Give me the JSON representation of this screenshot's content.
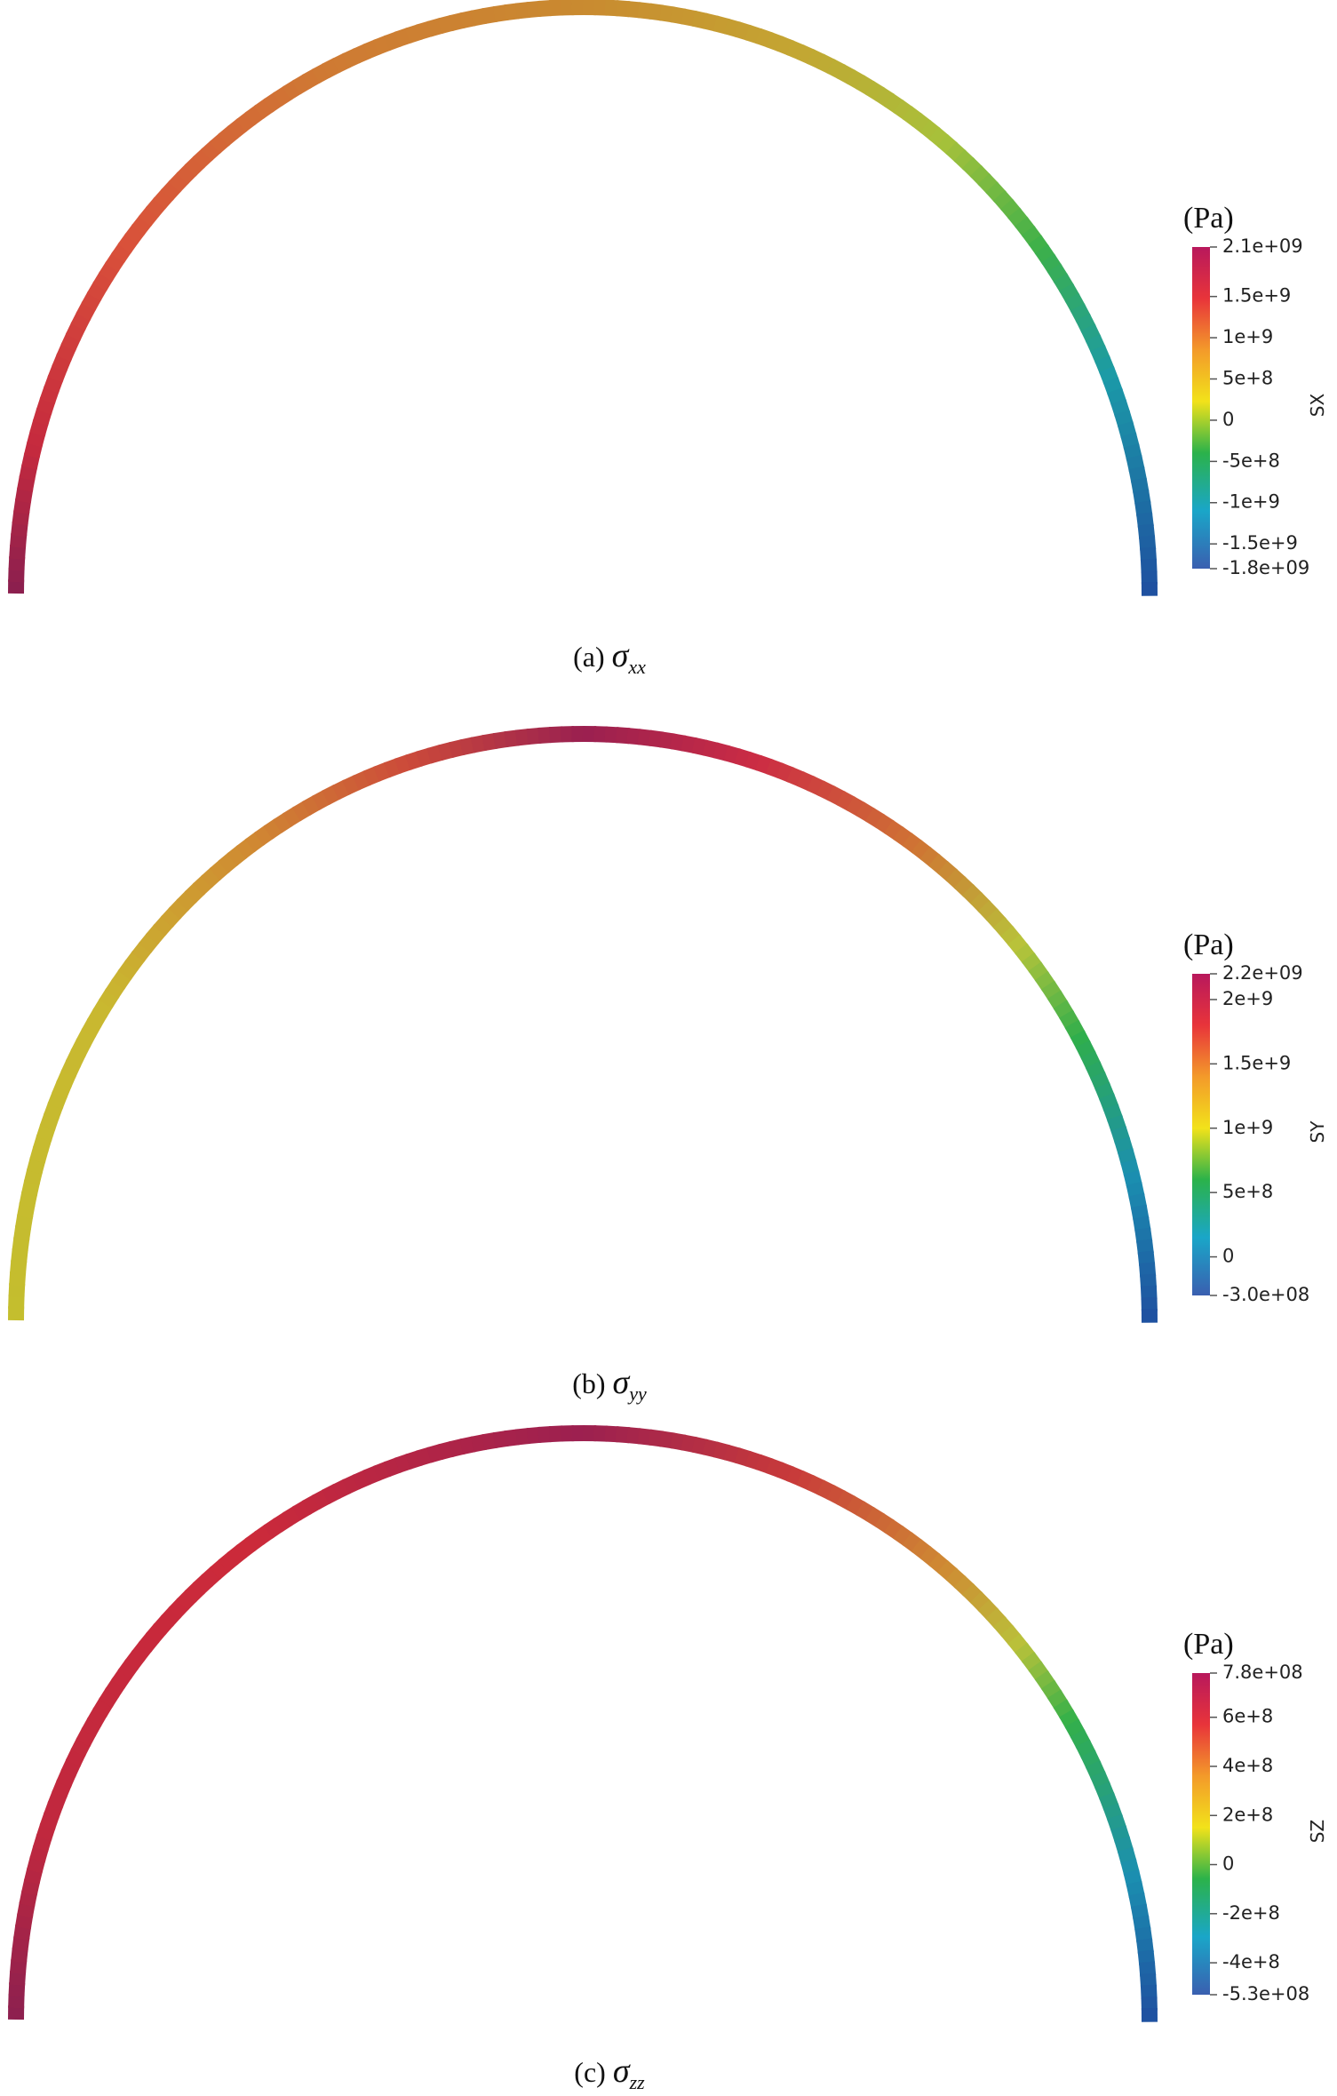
{
  "panels": [
    {
      "unit": "(Pa)",
      "scalar": "SX",
      "caption_prefix": "(a)",
      "caption_symbol": "σ",
      "caption_subscript": "xx",
      "colorbar": {
        "range": [
          -1800000000,
          2100000000
        ],
        "ticks": [
          {
            "value": 2100000000,
            "label": "2.1e+09"
          },
          {
            "value": 1500000000,
            "label": "1.5e+9"
          },
          {
            "value": 1000000000,
            "label": "1e+9"
          },
          {
            "value": 500000000,
            "label": "5e+8"
          },
          0,
          {
            "value": -500000000,
            "label": "-5e+8"
          },
          {
            "value": -1000000000,
            "label": "-1e+9"
          },
          {
            "value": -1500000000,
            "label": "-1.5e+9"
          },
          {
            "value": -1800000000,
            "label": "-1.8e+09"
          }
        ]
      }
    },
    {
      "unit": "(Pa)",
      "scalar": "SY",
      "caption_prefix": "(b)",
      "caption_symbol": "σ",
      "caption_subscript": "yy",
      "colorbar": {
        "range": [
          -300000000,
          2200000000
        ],
        "ticks": [
          {
            "value": 2200000000,
            "label": "2.2e+09"
          },
          {
            "value": 2000000000,
            "label": "2e+9"
          },
          {
            "value": 1500000000,
            "label": "1.5e+9"
          },
          {
            "value": 1000000000,
            "label": "1e+9"
          },
          {
            "value": 500000000,
            "label": "5e+8"
          },
          0,
          {
            "value": -300000000,
            "label": "-3.0e+08"
          }
        ]
      }
    },
    {
      "unit": "(Pa)",
      "scalar": "SZ",
      "caption_prefix": "(c)",
      "caption_symbol": "σ",
      "caption_subscript": "zz",
      "colorbar": {
        "range": [
          -530000000,
          780000000
        ],
        "ticks": [
          {
            "value": 780000000,
            "label": "7.8e+08"
          },
          {
            "value": 600000000,
            "label": "6e+8"
          },
          {
            "value": 400000000,
            "label": "4e+8"
          },
          {
            "value": 200000000,
            "label": "2e+8"
          },
          0,
          {
            "value": -200000000,
            "label": "-2e+8"
          },
          {
            "value": -400000000,
            "label": "-4e+8"
          },
          {
            "value": -530000000,
            "label": "-5.3e+08"
          }
        ]
      }
    }
  ]
}
